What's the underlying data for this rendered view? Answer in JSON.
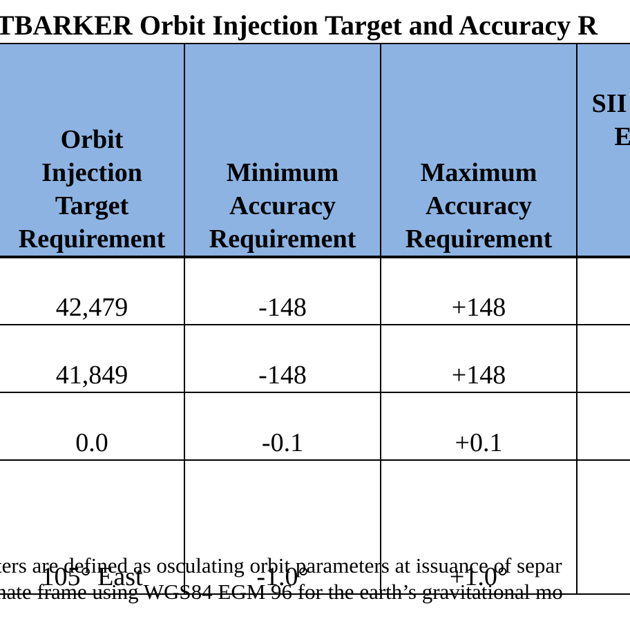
{
  "title": "TBARKER Orbit Injection Target and Accuracy R",
  "table": {
    "headers": [
      [
        "Orbit",
        "Injection",
        "Target",
        "Requirement"
      ],
      [
        "Minimum",
        "Accuracy",
        "Requirement"
      ],
      [
        "Maximum",
        "Accuracy",
        "Requirement"
      ],
      [
        "SII",
        "E"
      ]
    ],
    "rows": [
      [
        "42,479",
        "-148",
        "+148",
        ""
      ],
      [
        "41,849",
        "-148",
        "+148",
        ""
      ],
      [
        "0.0",
        "-0.1",
        "+0.1",
        ""
      ],
      [
        "105° East",
        "-1.0°",
        "+1.0°",
        ""
      ]
    ]
  },
  "notes": [
    "ters are defined as osculating orbit parameters at issuance of separ",
    "nate frame using WGS84 EGM 96 for the earth’s gravitational mo"
  ],
  "colors": {
    "header_bg": "#8db3e2",
    "border": "#000000"
  }
}
